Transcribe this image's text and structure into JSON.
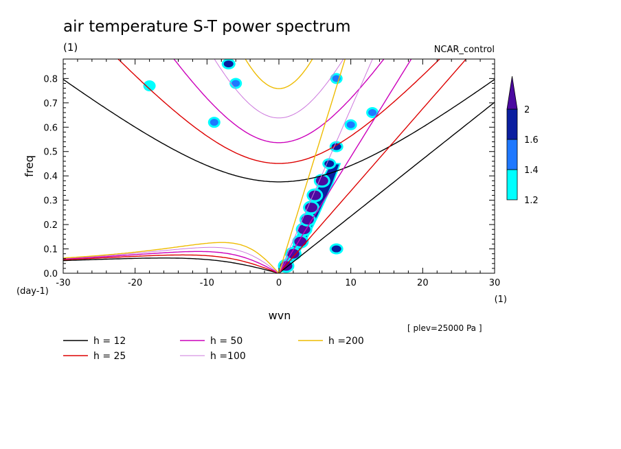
{
  "chart_data": {
    "type": "heatmap",
    "title": "air temperature S-T power spectrum",
    "subtitle_left": "(1)",
    "model_label": "NCAR_control",
    "xlabel": "wvn",
    "ylabel": "freq",
    "x_unit": "(1)",
    "y_unit": "(day-1)",
    "xlim": [
      -30,
      30
    ],
    "ylim": [
      0,
      0.88
    ],
    "x_ticks": [
      -30,
      -20,
      -10,
      0,
      10,
      20,
      30
    ],
    "x_tick_labels": [
      "-30",
      "-20",
      "-10",
      "0",
      "10",
      "20",
      "30"
    ],
    "y_ticks": [
      0,
      0.1,
      0.2,
      0.3,
      0.4,
      0.5,
      0.6,
      0.7,
      0.8
    ],
    "y_tick_labels": [
      "0.0",
      "0.1",
      "0.2",
      "0.3",
      "0.4",
      "0.5",
      "0.6",
      "0.7",
      "0.8"
    ],
    "level_note": "[ plev=25000 Pa ]",
    "colorbar": {
      "levels": [
        1.2,
        1.4,
        1.6,
        2
      ],
      "labels": [
        "1.2",
        "1.4",
        "1.6",
        "2"
      ],
      "colors": [
        "#00ffff",
        "#1e78ff",
        "#0a1ea0",
        "#4b0aa0"
      ]
    },
    "dispersion_curves": [
      {
        "label": "h = 12",
        "h": 12,
        "color": "#000000"
      },
      {
        "label": "h = 25",
        "h": 25,
        "color": "#dd0000"
      },
      {
        "label": "h = 50",
        "h": 50,
        "color": "#cc00bb"
      },
      {
        "label": "h =100",
        "h": 100,
        "color": "#cc77dd"
      },
      {
        "label": "h =200",
        "h": 200,
        "color": "#eebb00"
      }
    ],
    "kelvin_wave_note": "straight lines from origin",
    "spectral_peaks": [
      {
        "k": 1,
        "f": 0.03,
        "level": 2
      },
      {
        "k": 2,
        "f": 0.08,
        "level": 2
      },
      {
        "k": 3,
        "f": 0.13,
        "level": 2
      },
      {
        "k": 3.5,
        "f": 0.18,
        "level": 2
      },
      {
        "k": 4,
        "f": 0.22,
        "level": 2
      },
      {
        "k": 4.5,
        "f": 0.27,
        "level": 2
      },
      {
        "k": 5,
        "f": 0.32,
        "level": 2
      },
      {
        "k": 6,
        "f": 0.38,
        "level": 2
      },
      {
        "k": 7,
        "f": 0.45,
        "level": 1.6
      },
      {
        "k": 8,
        "f": 0.52,
        "level": 1.6
      },
      {
        "k": 10,
        "f": 0.61,
        "level": 1.4
      },
      {
        "k": 13,
        "f": 0.66,
        "level": 1.4
      },
      {
        "k": 8,
        "f": 0.1,
        "level": 1.6
      },
      {
        "k": -7,
        "f": 0.86,
        "level": 1.6
      },
      {
        "k": -6,
        "f": 0.78,
        "level": 1.4
      },
      {
        "k": -9,
        "f": 0.62,
        "level": 1.4
      },
      {
        "k": 8,
        "f": 0.8,
        "level": 1.4
      },
      {
        "k": -18,
        "f": 0.77,
        "level": 1.2
      }
    ]
  }
}
